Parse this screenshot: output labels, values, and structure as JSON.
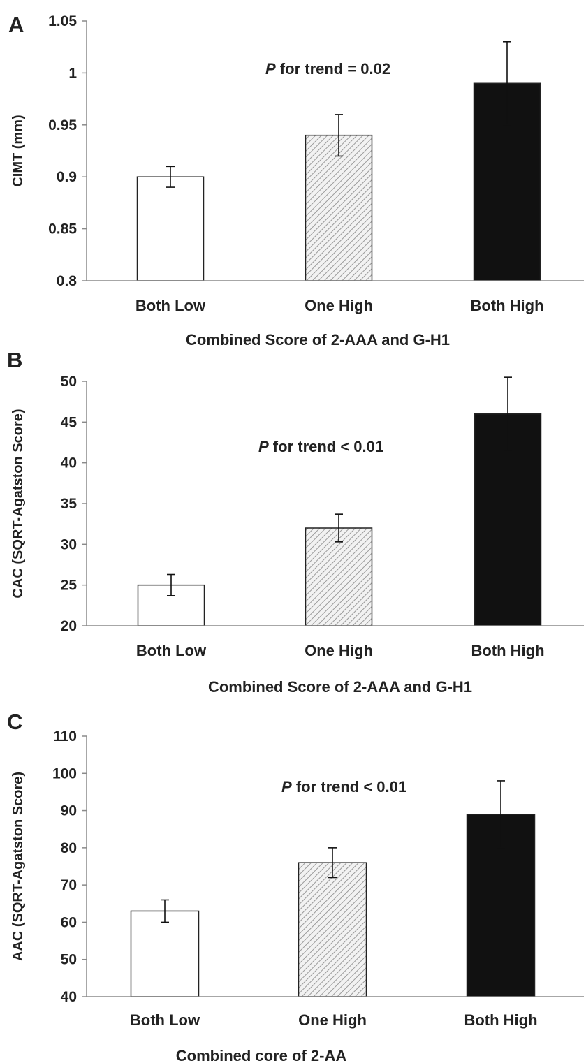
{
  "chart_data": [
    {
      "panel": "A",
      "type": "bar",
      "categories": [
        "Both Low",
        "One High",
        "Both High"
      ],
      "values": [
        0.9,
        0.94,
        0.99
      ],
      "errors": [
        0.01,
        0.02,
        0.04
      ],
      "fills": [
        "white",
        "hatched",
        "black"
      ],
      "ylabel": "CIMT (mm)",
      "xlabel": "Combined Score of  2-AAA and G-H1",
      "ylim": [
        0.8,
        1.05
      ],
      "yticks": [
        "0.8",
        "0.85",
        "0.9",
        "0.95",
        "1",
        "1.05"
      ],
      "annotation": {
        "p": "P",
        "text": " for trend = 0.02"
      }
    },
    {
      "panel": "B",
      "type": "bar",
      "categories": [
        "Both Low",
        "One High",
        "Both High"
      ],
      "values": [
        25,
        32,
        46
      ],
      "errors": [
        1.3,
        1.7,
        4.5
      ],
      "fills": [
        "white",
        "hatched",
        "black"
      ],
      "ylabel": "CAC (SQRT-Agatston Score)",
      "xlabel": "Combined Score of 2-AAA and G-H1",
      "ylim": [
        20,
        50
      ],
      "yticks": [
        "20",
        "25",
        "30",
        "35",
        "40",
        "45",
        "50"
      ],
      "annotation": {
        "p": "P",
        "text": " for trend < 0.01"
      }
    },
    {
      "panel": "C",
      "type": "bar",
      "categories": [
        "Both Low",
        "One High",
        "Both High"
      ],
      "values": [
        63,
        76,
        89
      ],
      "errors": [
        3,
        4,
        9
      ],
      "fills": [
        "white",
        "hatched",
        "black"
      ],
      "ylabel": "AAC (SQRT-Agatston Score)",
      "xlabel": "Combined core of  2-AA",
      "ylim": [
        40,
        110
      ],
      "yticks": [
        "40",
        "50",
        "60",
        "70",
        "80",
        "90",
        "100",
        "110"
      ],
      "annotation": {
        "p": "P",
        "text": " for trend < 0.01"
      }
    }
  ],
  "colors": {
    "axis": "#8a8a8a",
    "bar_outline": "#222222",
    "black_bar": "#111111",
    "hatch_bg": "#f2f2f2",
    "hatch_line": "#9a9a9a"
  }
}
